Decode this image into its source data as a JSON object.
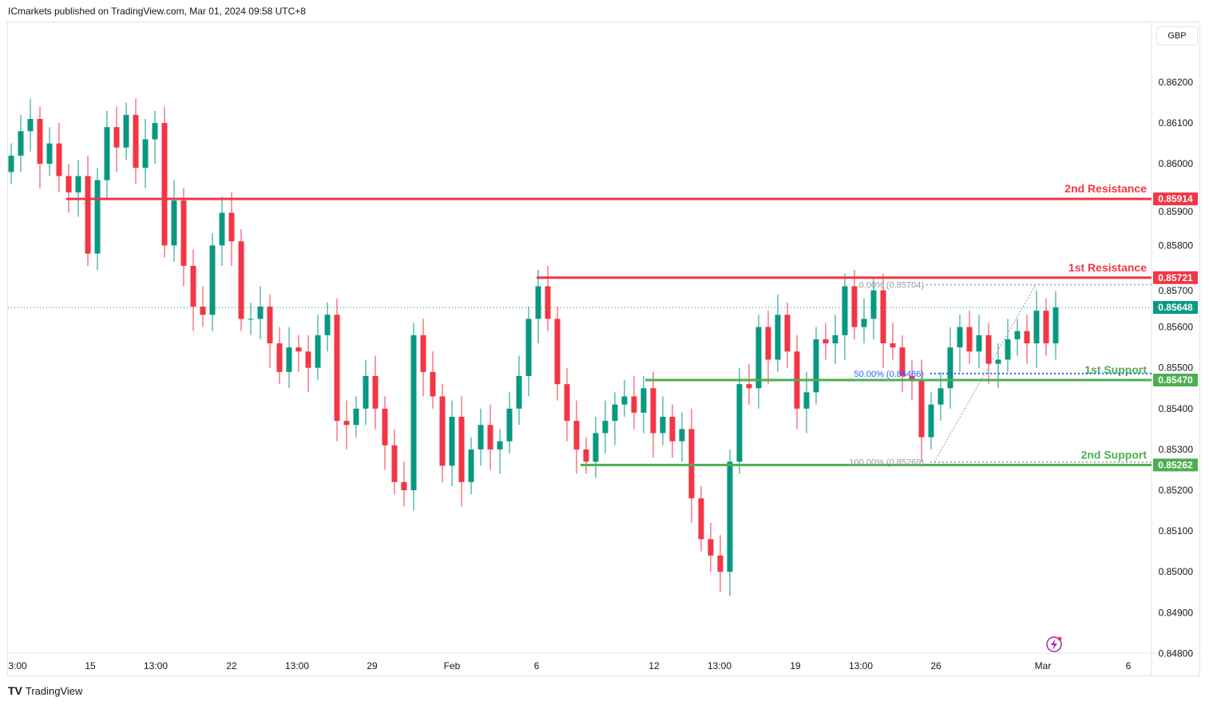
{
  "header": {
    "published": "ICmarkets published on TradingView.com, Mar 01, 2024 09:58 UTC+8"
  },
  "currency": "GBP",
  "footer": {
    "brand": "TradingView"
  },
  "colors": {
    "up": "#089981",
    "down": "#f23645",
    "resistance": "#f23645",
    "support": "#4caf50",
    "fib50": "#2962ff",
    "current": "#089981"
  },
  "chart_data": {
    "type": "candlestick",
    "title": "",
    "y_ticks": [
      "0.86200",
      "0.86100",
      "0.86000",
      "0.85900",
      "0.85800",
      "0.85700",
      "0.85600",
      "0.85500",
      "0.85400",
      "0.85300",
      "0.85200",
      "0.85100",
      "0.85000",
      "0.84900",
      "0.84800"
    ],
    "ylim": [
      0.8479,
      0.8633
    ],
    "x_ticks": [
      "3:00",
      "15",
      "13:00",
      "22",
      "13:00",
      "29",
      "Feb",
      "6",
      "12",
      "13:00",
      "19",
      "13:00",
      "26",
      "Mar",
      "6"
    ],
    "first_open": 0.8598,
    "closes": [
      0.8602,
      0.8608,
      0.8611,
      0.86,
      0.8605,
      0.8597,
      0.8593,
      0.8597,
      0.8578,
      0.8596,
      0.8609,
      0.8604,
      0.8612,
      0.8599,
      0.8606,
      0.861,
      0.858,
      0.8591,
      0.8575,
      0.8565,
      0.8563,
      0.858,
      0.8588,
      0.8581,
      0.8562,
      0.8562,
      0.8565,
      0.8556,
      0.8549,
      0.8555,
      0.8554,
      0.855,
      0.8558,
      0.8563,
      0.8537,
      0.8536,
      0.854,
      0.8548,
      0.854,
      0.8531,
      0.8522,
      0.852,
      0.8558,
      0.8549,
      0.8543,
      0.8526,
      0.8538,
      0.8522,
      0.853,
      0.8536,
      0.853,
      0.8532,
      0.854,
      0.8548,
      0.8562,
      0.857,
      0.8562,
      0.8546,
      0.8537,
      0.853,
      0.8527,
      0.8534,
      0.8537,
      0.8541,
      0.8543,
      0.8539,
      0.8545,
      0.8534,
      0.8538,
      0.8532,
      0.8535,
      0.8518,
      0.8508,
      0.8504,
      0.85,
      0.8527,
      0.8546,
      0.8545,
      0.856,
      0.8552,
      0.8563,
      0.8554,
      0.854,
      0.8544,
      0.8557,
      0.8556,
      0.8558,
      0.857,
      0.856,
      0.8562,
      0.8569,
      0.8556,
      0.8555,
      0.8548,
      0.8547,
      0.8533,
      0.8541,
      0.8545,
      0.8555,
      0.856,
      0.8554,
      0.8558,
      0.8551,
      0.8552,
      0.8557,
      0.8559,
      0.8556,
      0.8564,
      0.8556,
      0.85648
    ],
    "levels": [
      {
        "name": "2nd Resistance",
        "value": 0.85914,
        "label": "0.85914",
        "kind": "resistance"
      },
      {
        "name": "1st Resistance",
        "value": 0.85721,
        "label": "0.85721",
        "kind": "resistance"
      },
      {
        "name": "1st Support",
        "value": 0.8547,
        "label": "0.85470",
        "kind": "support"
      },
      {
        "name": "2nd Support",
        "value": 0.85262,
        "label": "0.85262",
        "kind": "support"
      }
    ],
    "current_price": {
      "value": 0.85648,
      "label": "0.85648"
    },
    "fib": [
      {
        "label": "0.00% (0.85704)",
        "value": 0.85704
      },
      {
        "label": "50.00% (0.85486)",
        "value": 0.85486
      },
      {
        "label": "100.00% (0.85269)",
        "value": 0.85269
      }
    ]
  }
}
